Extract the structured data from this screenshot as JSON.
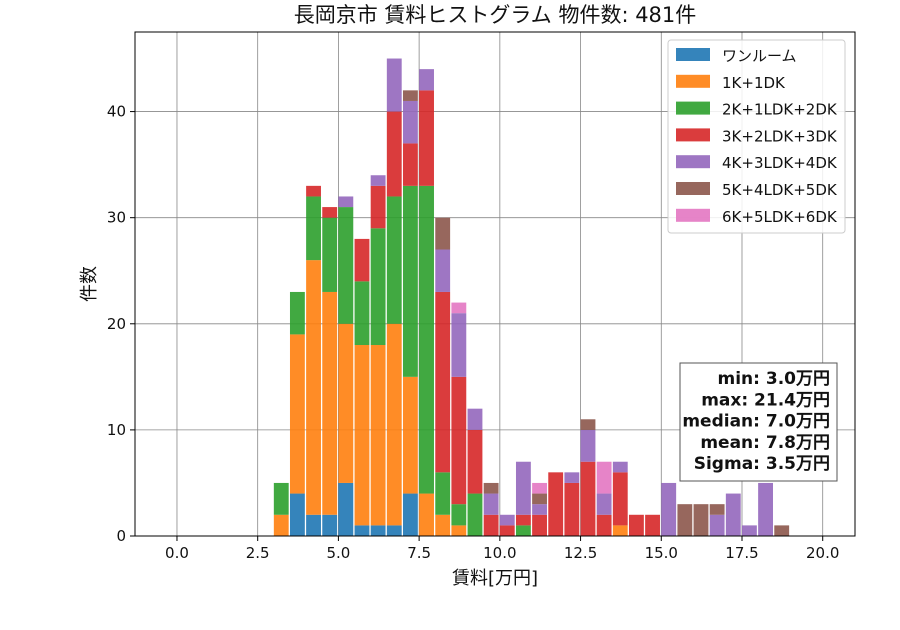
{
  "chart_data": {
    "type": "bar",
    "stacked": true,
    "title": "長岡京市 賃料ヒストグラム 物件数: 481件",
    "xlabel": "賃料[万円]",
    "ylabel": "件数",
    "xlim": [
      -1.3,
      21.0
    ],
    "ylim": [
      0,
      47.5
    ],
    "xticks": [
      0.0,
      2.5,
      5.0,
      7.5,
      10.0,
      12.5,
      15.0,
      17.5,
      20.0
    ],
    "xtick_labels": [
      "0.0",
      "2.5",
      "5.0",
      "7.5",
      "10.0",
      "12.5",
      "15.0",
      "17.5",
      "20.0"
    ],
    "yticks": [
      0,
      10,
      20,
      30,
      40
    ],
    "ytick_labels": [
      "0",
      "10",
      "20",
      "30",
      "40"
    ],
    "grid": true,
    "legend_position": "top-right",
    "bin_width": 0.5,
    "bin_starts": [
      3.0,
      3.5,
      4.0,
      4.5,
      5.0,
      5.5,
      6.0,
      6.5,
      7.0,
      7.5,
      8.0,
      8.5,
      9.0,
      9.5,
      10.0,
      10.5,
      11.0,
      11.5,
      12.0,
      12.5,
      13.0,
      13.5,
      14.0,
      14.5,
      15.0,
      15.5,
      16.0,
      16.5,
      17.0,
      17.5,
      18.0,
      18.5
    ],
    "series": [
      {
        "name": "ワンルーム",
        "color": "#1f77b4",
        "values": [
          0,
          4,
          2,
          2,
          5,
          1,
          1,
          1,
          4,
          0,
          0,
          0,
          0,
          0,
          0,
          0,
          0,
          0,
          0,
          0,
          0,
          0,
          0,
          0,
          0,
          0,
          0,
          0,
          0,
          0,
          0,
          0
        ]
      },
      {
        "name": "1K+1DK",
        "color": "#ff7f0e",
        "values": [
          2,
          15,
          24,
          21,
          15,
          17,
          17,
          19,
          11,
          4,
          2,
          1,
          0,
          0,
          0,
          0,
          0,
          0,
          0,
          0,
          0,
          1,
          0,
          0,
          0,
          0,
          0,
          0,
          0,
          0,
          0,
          0
        ]
      },
      {
        "name": "2K+1LDK+2DK",
        "color": "#2ca02c",
        "values": [
          3,
          4,
          6,
          7,
          11,
          6,
          11,
          12,
          18,
          29,
          4,
          2,
          4,
          0,
          0,
          1,
          0,
          0,
          0,
          0,
          0,
          0,
          0,
          0,
          0,
          0,
          0,
          0,
          0,
          0,
          0,
          0
        ]
      },
      {
        "name": "3K+2LDK+3DK",
        "color": "#d62728",
        "values": [
          0,
          0,
          1,
          1,
          0,
          4,
          4,
          8,
          4,
          9,
          17,
          12,
          6,
          2,
          1,
          1,
          2,
          6,
          5,
          7,
          2,
          5,
          2,
          2,
          0,
          0,
          0,
          0,
          0,
          0,
          0,
          0
        ]
      },
      {
        "name": "4K+3LDK+4DK",
        "color": "#9467bd",
        "values": [
          0,
          0,
          0,
          0,
          1,
          0,
          1,
          5,
          4,
          2,
          4,
          6,
          2,
          2,
          1,
          5,
          1,
          0,
          1,
          3,
          2,
          1,
          0,
          0,
          5,
          0,
          0,
          2,
          4,
          1,
          5,
          0
        ]
      },
      {
        "name": "5K+4LDK+5DK",
        "color": "#8c564b",
        "values": [
          0,
          0,
          0,
          0,
          0,
          0,
          0,
          0,
          1,
          0,
          3,
          0,
          0,
          1,
          0,
          0,
          1,
          0,
          0,
          1,
          0,
          0,
          0,
          0,
          0,
          3,
          3,
          1,
          0,
          0,
          0,
          1
        ]
      },
      {
        "name": "6K+5LDK+6DK",
        "color": "#e377c2",
        "values": [
          0,
          0,
          0,
          0,
          0,
          0,
          0,
          0,
          0,
          0,
          0,
          1,
          0,
          0,
          0,
          0,
          1,
          0,
          0,
          0,
          3,
          0,
          0,
          0,
          0,
          0,
          0,
          0,
          0,
          0,
          0,
          0
        ]
      }
    ],
    "stats_box": [
      "min: 3.0万円",
      "max: 21.4万円",
      "median: 7.0万円",
      "mean: 7.8万円",
      "Sigma: 3.5万円"
    ]
  }
}
